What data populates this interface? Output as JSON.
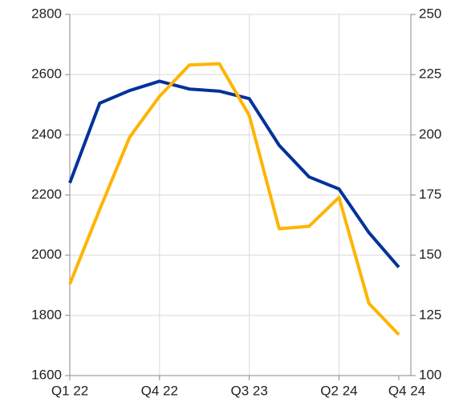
{
  "chart_data": {
    "type": "line",
    "categories": [
      "Q1 22",
      null,
      null,
      "Q4 22",
      null,
      null,
      "Q3 23",
      null,
      null,
      "Q2 24",
      null,
      "Q4 24"
    ],
    "series": [
      {
        "color": "#003299",
        "values": [
          2240,
          2505,
          2547,
          2578,
          2552,
          2545,
          2520,
          2365,
          2260,
          2220,
          2075,
          1960
        ]
      },
      {
        "color": "#ffb400",
        "axis": "y2",
        "values": [
          138,
          169,
          199,
          216,
          229,
          229.5,
          208,
          161,
          162,
          174,
          130,
          117
        ]
      }
    ],
    "ylim": [
      1600,
      2800
    ],
    "yticks": [
      1600,
      1800,
      2000,
      2200,
      2400,
      2600,
      2800
    ],
    "y2lim": [
      100,
      250
    ],
    "y2ticks": [
      100,
      125,
      150,
      175,
      200,
      225,
      250
    ],
    "grid": true
  }
}
